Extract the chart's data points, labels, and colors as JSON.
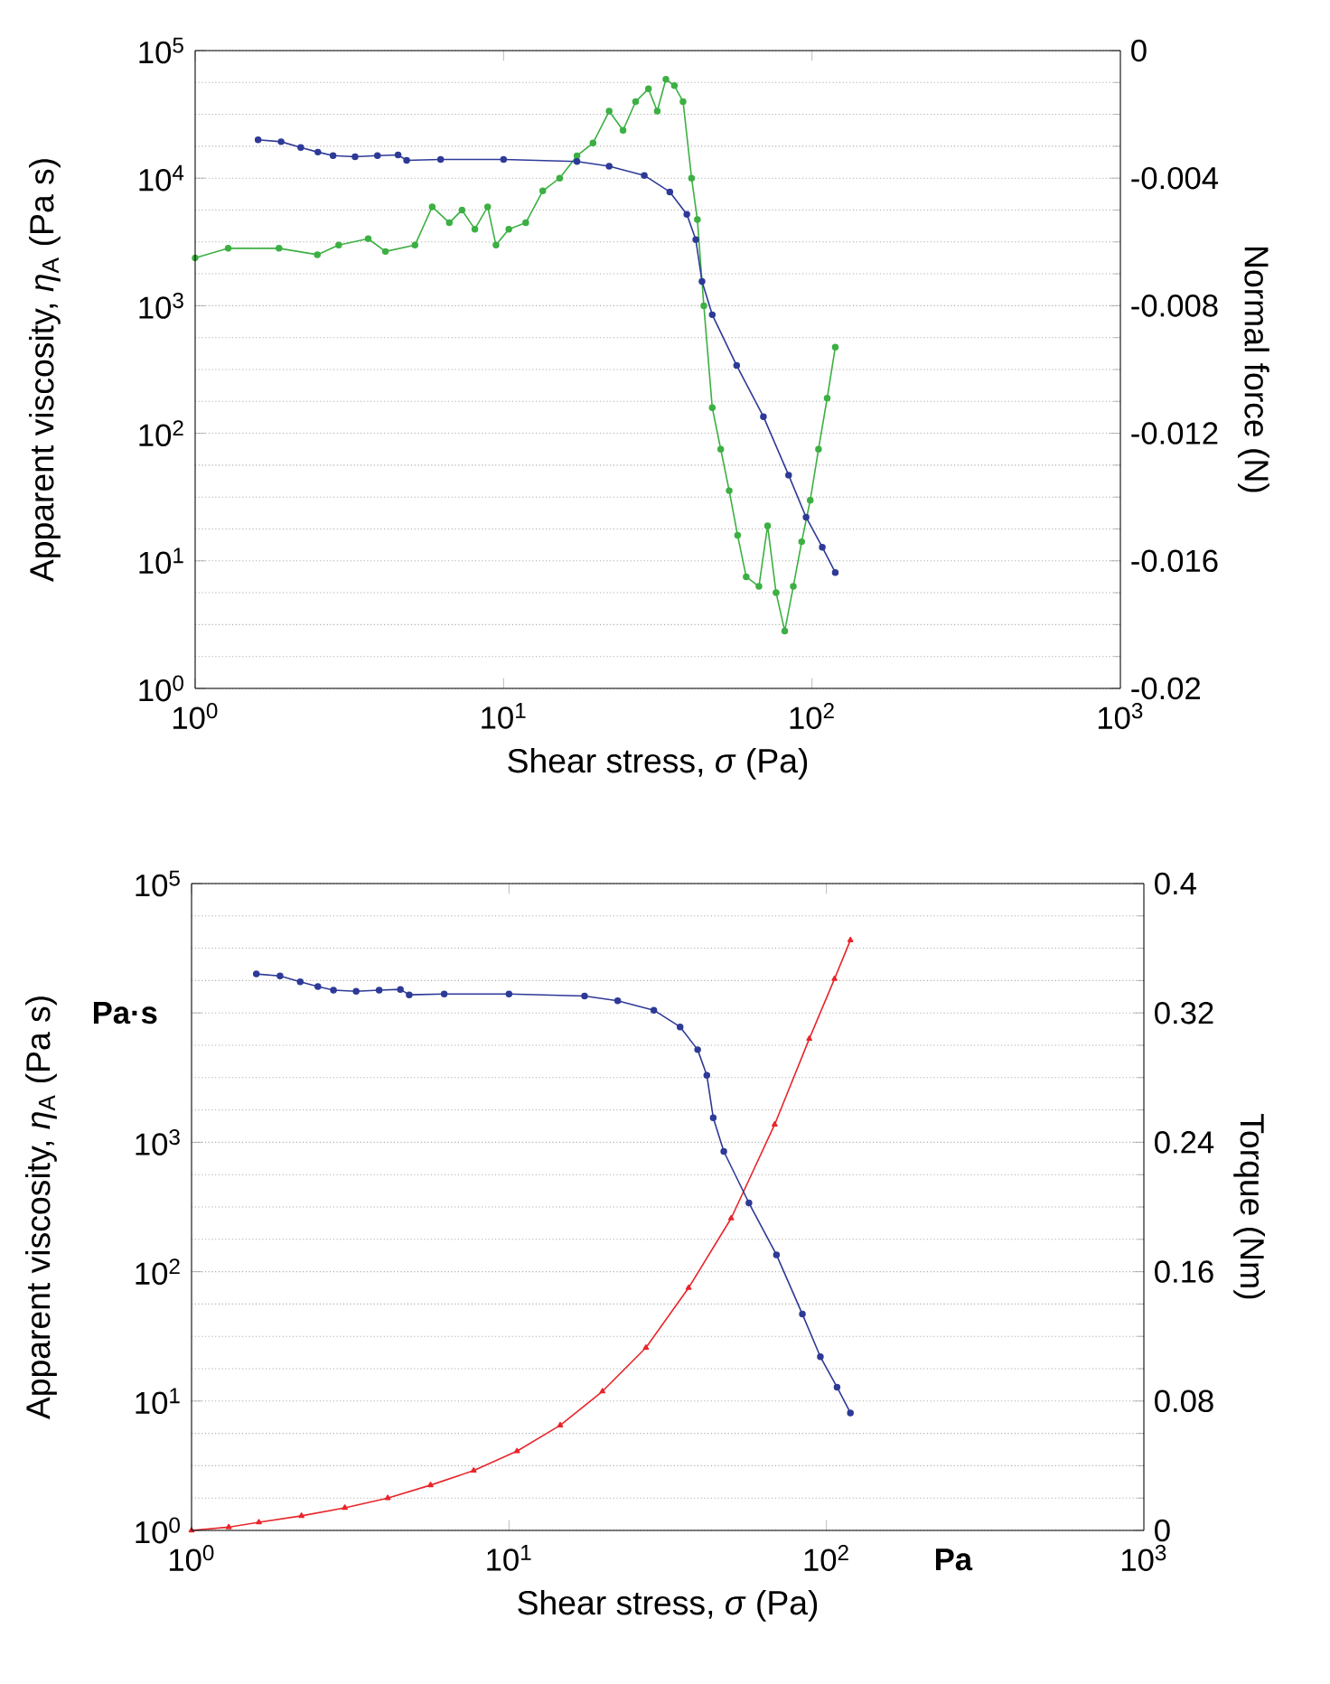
{
  "chart_data": [
    {
      "type": "line",
      "xlabel": "Shear stress, *σ* (Pa)",
      "ylabel": "Apparent viscosity, *η*$_{A}$ (Pa s)",
      "y2label": "Normal force (N)",
      "log": "xy",
      "grid": "y",
      "marker": "circle",
      "xlim": [
        1,
        1000
      ],
      "xticks": [
        {
          "value": 1,
          "label": "10$^{0}$"
        },
        {
          "value": 10,
          "label": "10$^{1}$"
        },
        {
          "value": 100,
          "label": "10$^{2}$"
        },
        {
          "value": 1000,
          "label": "10$^{3}$"
        }
      ],
      "ylim": [
        1,
        100000
      ],
      "yticks": [
        {
          "value": 1,
          "label": "10$^{0}$"
        },
        {
          "value": 10,
          "label": "10$^{1}$"
        },
        {
          "value": 100,
          "label": "10$^{2}$"
        },
        {
          "value": 1000,
          "label": "10$^{3}$"
        },
        {
          "value": 10000,
          "label": "10$^{4}$"
        },
        {
          "value": 100000,
          "label": "10$^{5}$"
        }
      ],
      "y2lim": [
        -0.02,
        0
      ],
      "y2ticks": [
        0,
        -0.004,
        -0.008,
        -0.012,
        -0.016,
        -0.02
      ],
      "series": [
        {
          "color": "#2e3a97",
          "x": [
            1.6,
            1.9,
            2.2,
            2.5,
            2.8,
            3.3,
            3.9,
            4.55,
            4.85,
            6.25,
            10,
            17.3,
            22,
            28.6,
            34.6,
            39.3,
            42,
            44,
            47.5,
            57,
            69.6,
            84,
            95.7,
            108,
            119
          ],
          "values": [
            20000,
            19300,
            17400,
            16000,
            15000,
            14700,
            15000,
            15200,
            13800,
            14000,
            14000,
            13500,
            12400,
            10500,
            7800,
            5200,
            3300,
            1550,
            850,
            340,
            135,
            47,
            22,
            12.8,
            8.1
          ]
        },
        {
          "color": "#3cb043",
          "axis": "y2",
          "x": [
            1,
            1.28,
            1.87,
            2.49,
            2.92,
            3.64,
            4.14,
            5.16,
            5.87,
            6.67,
            7.33,
            8.07,
            8.88,
            9.45,
            10.4,
            11.8,
            13.4,
            15.2,
            17.3,
            19.5,
            22,
            24.4,
            26.8,
            29.5,
            31.5,
            33.6,
            35.8,
            38.2,
            40.7,
            42.5,
            44.6,
            47.5,
            50.6,
            53.9,
            57.4,
            61.2,
            67.3,
            71.8,
            76.5,
            81.6,
            87,
            92.6,
            98.7,
            105,
            112,
            119
          ],
          "values": [
            -0.0065,
            -0.0062,
            -0.0062,
            -0.0064,
            -0.0061,
            -0.0059,
            -0.0063,
            -0.0061,
            -0.0049,
            -0.0054,
            -0.005,
            -0.0056,
            -0.0049,
            -0.0061,
            -0.0056,
            -0.0054,
            -0.0044,
            -0.004,
            -0.0033,
            -0.0029,
            -0.0019,
            -0.0025,
            -0.0016,
            -0.0012,
            -0.0019,
            -0.0009,
            -0.0011,
            -0.0016,
            -0.004,
            -0.0053,
            -0.008,
            -0.0112,
            -0.0125,
            -0.0138,
            -0.0152,
            -0.0165,
            -0.0168,
            -0.0149,
            -0.017,
            -0.0182,
            -0.0168,
            -0.0154,
            -0.0141,
            -0.0125,
            -0.0109,
            -0.0093
          ]
        }
      ]
    },
    {
      "type": "line",
      "xlabel": "Shear stress, *σ* (Pa)",
      "ylabel": "Apparent viscosity, *η*$_{A}$ (Pa s)",
      "y2label": "Torque (Nm)",
      "log": "xy",
      "grid": "y",
      "marker": "circle",
      "xlim": [
        1,
        1000
      ],
      "xticks": [
        {
          "value": 1,
          "label": "10$^{0}$"
        },
        {
          "value": 10,
          "label": "10$^{1}$"
        },
        {
          "value": 100,
          "label": "10$^{2}$"
        },
        {
          "value": 1000,
          "label": "10$^{3}$"
        }
      ],
      "ylim": [
        1,
        100000
      ],
      "yticks": [
        {
          "value": 1,
          "label": "10$^{0}$"
        },
        {
          "value": 10,
          "label": "10$^{1}$"
        },
        {
          "value": 100,
          "label": "10$^{2}$"
        },
        {
          "value": 1000,
          "label": "10$^{3}$"
        },
        {
          "value": 10000,
          "label": null
        },
        {
          "value": 100000,
          "label": "10$^{5}$"
        }
      ],
      "y2lim": [
        0,
        0.4
      ],
      "y2ticks": [
        0,
        0.08,
        0.16,
        0.24,
        0.32,
        0.4
      ],
      "annotations": [
        "Pa·s",
        "Pa"
      ],
      "series": [
        {
          "color": "#2e3a97",
          "x": [
            1.6,
            1.9,
            2.2,
            2.5,
            2.8,
            3.3,
            3.9,
            4.55,
            4.85,
            6.25,
            10,
            17.3,
            22,
            28.6,
            34.6,
            39.3,
            42,
            44,
            47.5,
            57,
            69.6,
            84,
            95.7,
            108,
            119
          ],
          "values": [
            20000,
            19300,
            17400,
            16000,
            15000,
            14700,
            15000,
            15200,
            13800,
            14000,
            14000,
            13500,
            12400,
            10500,
            7800,
            5200,
            3300,
            1550,
            850,
            340,
            135,
            47,
            22,
            12.8,
            8.1
          ]
        },
        {
          "color": "#e8262b",
          "axis": "y2",
          "marker": "triangle",
          "x": [
            1,
            1.31,
            1.63,
            2.22,
            3.04,
            4.15,
            5.66,
            7.74,
            10.6,
            14.5,
            19.7,
            27,
            36.8,
            50.1,
            68.7,
            88.3,
            106,
            119
          ],
          "values": [
            0,
            0.002,
            0.005,
            0.009,
            0.014,
            0.02,
            0.028,
            0.037,
            0.049,
            0.065,
            0.086,
            0.113,
            0.15,
            0.193,
            0.251,
            0.304,
            0.341,
            0.365
          ]
        }
      ]
    }
  ]
}
